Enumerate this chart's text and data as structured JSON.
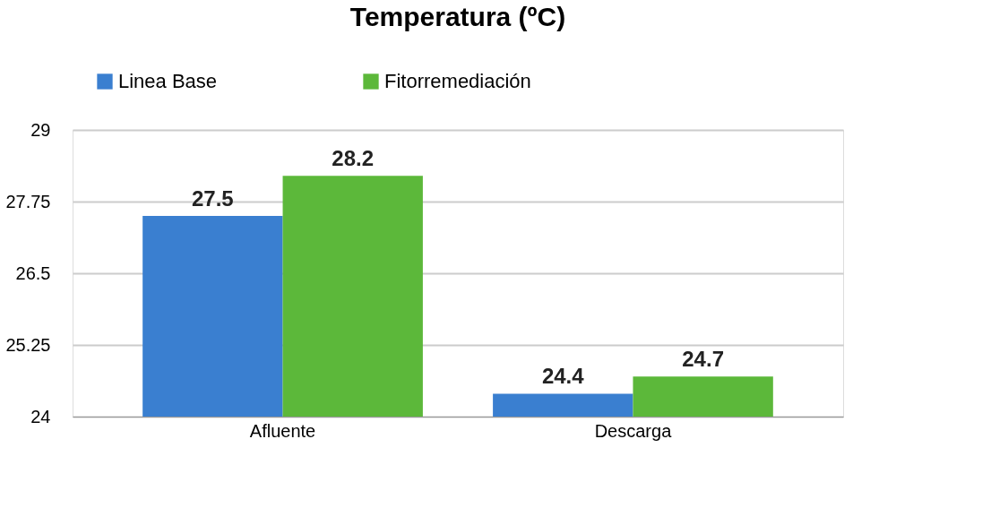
{
  "chart_data": {
    "type": "bar",
    "title": "Temperatura (ºC)",
    "categories": [
      "Afluente",
      "Descarga"
    ],
    "series": [
      {
        "name": "Linea Base",
        "color": "#3a7fd0",
        "values": [
          27.5,
          24.4
        ]
      },
      {
        "name": "Fitorremediación",
        "color": "#5cb83a",
        "values": [
          28.2,
          24.7
        ]
      }
    ],
    "ylim": [
      24,
      29
    ],
    "yticks": [
      24,
      25.25,
      26.5,
      27.75,
      29
    ],
    "grid": "y",
    "legend": "top",
    "data_labels": true
  }
}
